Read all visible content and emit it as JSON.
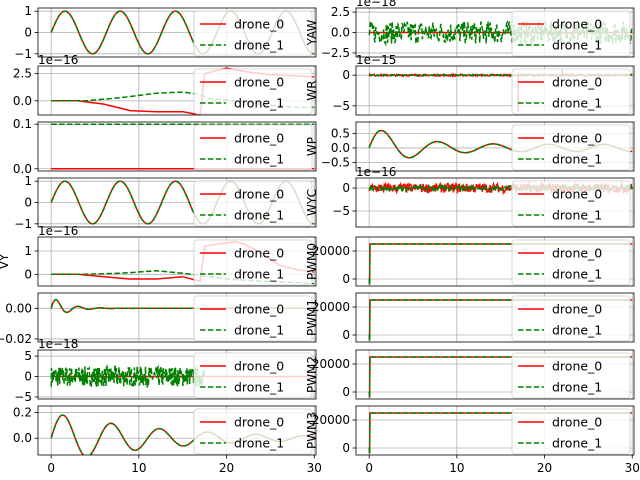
{
  "figure": {
    "legend_labels": [
      "drone_0",
      "drone_1"
    ],
    "colors": {
      "drone_0": "#ff0000",
      "drone_1": "#008000"
    },
    "x_ticks": [
      "0",
      "10",
      "20",
      "30"
    ],
    "legend_placement": "right"
  },
  "chart_data": [
    {
      "type": "line",
      "ylabel": "",
      "offset": "",
      "yticks": [
        {
          "v": 1,
          "t": "1"
        },
        {
          "v": 0,
          "t": "0"
        },
        {
          "v": -1,
          "t": "−1"
        }
      ],
      "x": [
        0,
        30
      ],
      "ylim": [
        -1.15,
        1.15
      ],
      "series": [
        {
          "name": "drone_0",
          "shape": "sine",
          "amp": 1.0,
          "period": 6.3,
          "until": 30
        },
        {
          "name": "drone_1",
          "shape": "sine",
          "amp": 1.0,
          "period": 6.3,
          "until": 30
        }
      ]
    },
    {
      "type": "line",
      "ylabel": "",
      "offset": "1e−16",
      "yticks": [
        {
          "v": 2.5,
          "t": "2.5"
        },
        {
          "v": 0,
          "t": "0.0"
        }
      ],
      "x": [
        0,
        30
      ],
      "ylim": [
        -1.3,
        3.2
      ],
      "series": [
        {
          "name": "drone_0",
          "points": [
            [
              0,
              0
            ],
            [
              3,
              0
            ],
            [
              6,
              -0.3
            ],
            [
              9,
              -0.9
            ],
            [
              12,
              -1.0
            ],
            [
              15,
              -1.0
            ],
            [
              17,
              -1.3
            ],
            [
              17.5,
              2.5
            ],
            [
              20,
              3.0
            ],
            [
              22,
              2.7
            ],
            [
              25,
              2.4
            ],
            [
              28,
              2.3
            ],
            [
              30,
              2.2
            ]
          ]
        },
        {
          "name": "drone_1",
          "points": [
            [
              0,
              0
            ],
            [
              4,
              0
            ],
            [
              8,
              0.3
            ],
            [
              12,
              0.7
            ],
            [
              15,
              0.8
            ],
            [
              17,
              0.6
            ],
            [
              18,
              0.2
            ],
            [
              21,
              0
            ],
            [
              25,
              -0.4
            ],
            [
              28,
              -0.6
            ],
            [
              30,
              -0.6
            ]
          ]
        }
      ]
    },
    {
      "type": "line",
      "ylabel": "",
      "offset": "",
      "yticks": [
        {
          "v": 0.1,
          "t": "0.1"
        },
        {
          "v": 0,
          "t": "0.0"
        }
      ],
      "x": [
        0,
        30
      ],
      "ylim": [
        -0.005,
        0.105
      ],
      "series": [
        {
          "name": "drone_0",
          "points": [
            [
              0,
              0
            ],
            [
              30,
              0
            ]
          ]
        },
        {
          "name": "drone_1",
          "points": [
            [
              0,
              0.1
            ],
            [
              30,
              0.1
            ]
          ]
        }
      ]
    },
    {
      "type": "line",
      "ylabel": "",
      "offset": "",
      "yticks": [
        {
          "v": 1,
          "t": "1"
        },
        {
          "v": 0,
          "t": "0"
        },
        {
          "v": -1,
          "t": "−1"
        }
      ],
      "x": [
        0,
        30
      ],
      "ylim": [
        -1.15,
        1.15
      ],
      "series": [
        {
          "name": "drone_0",
          "shape": "sine",
          "amp": 1.0,
          "period": 6.3,
          "until": 30
        },
        {
          "name": "drone_1",
          "shape": "sine",
          "amp": 1.0,
          "period": 6.3,
          "until": 30
        }
      ]
    },
    {
      "type": "line",
      "ylabel": "VY",
      "offset": "1e−16",
      "yticks": [
        {
          "v": 1,
          "t": "1"
        },
        {
          "v": 0,
          "t": "0"
        }
      ],
      "x": [
        0,
        30
      ],
      "ylim": [
        -0.5,
        1.6
      ],
      "series": [
        {
          "name": "drone_0",
          "points": [
            [
              0,
              0
            ],
            [
              3,
              0
            ],
            [
              6,
              -0.1
            ],
            [
              9,
              -0.2
            ],
            [
              12,
              -0.2
            ],
            [
              15,
              -0.1
            ],
            [
              17,
              -0.3
            ],
            [
              17.5,
              1.2
            ],
            [
              19,
              1.3
            ],
            [
              21,
              1.4
            ],
            [
              22,
              1.3
            ],
            [
              24,
              0.9
            ],
            [
              26,
              0.4
            ],
            [
              28,
              0.2
            ],
            [
              30,
              0.1
            ]
          ]
        },
        {
          "name": "drone_1",
          "points": [
            [
              0,
              0
            ],
            [
              4,
              0
            ],
            [
              8,
              0.05
            ],
            [
              12,
              0.15
            ],
            [
              15,
              0.05
            ],
            [
              17,
              -0.05
            ],
            [
              20,
              -0.2
            ],
            [
              24,
              -0.3
            ],
            [
              28,
              -0.35
            ],
            [
              30,
              -0.4
            ]
          ]
        }
      ]
    },
    {
      "type": "line",
      "ylabel": "",
      "offset": "",
      "yticks": [
        {
          "v": 0,
          "t": "0.00"
        },
        {
          "v": -0.02,
          "t": "−0.02"
        }
      ],
      "x": [
        0,
        30
      ],
      "ylim": [
        -0.022,
        0.01
      ],
      "series": [
        {
          "name": "drone_0",
          "shape": "damped",
          "amp": 0.008,
          "period": 2.5,
          "decay": 0.6,
          "until": 30
        },
        {
          "name": "drone_1",
          "shape": "damped",
          "amp": 0.008,
          "period": 2.5,
          "decay": 0.6,
          "until": 30
        }
      ]
    },
    {
      "type": "line",
      "ylabel": "",
      "offset": "1e−18",
      "yticks": [
        {
          "v": 5,
          "t": "5"
        },
        {
          "v": 0,
          "t": "0"
        },
        {
          "v": -5,
          "t": "−5"
        }
      ],
      "x": [
        0,
        30
      ],
      "ylim": [
        -5.5,
        6.5
      ],
      "series": [
        {
          "name": "drone_0",
          "points": [
            [
              0,
              0
            ],
            [
              30,
              0
            ]
          ]
        },
        {
          "name": "drone_1",
          "shape": "noise",
          "amp": 2.5,
          "until": 17.5
        }
      ]
    },
    {
      "type": "line",
      "ylabel": "",
      "offset": "",
      "yticks": [
        {
          "v": 0.2,
          "t": "0.2"
        },
        {
          "v": 0,
          "t": "0.0"
        }
      ],
      "x": [
        0,
        30
      ],
      "ylim": [
        -0.13,
        0.25
      ],
      "series": [
        {
          "name": "drone_0",
          "shape": "damped",
          "amp": 0.2,
          "period": 5.5,
          "decay": 0.08,
          "until": 30
        },
        {
          "name": "drone_1",
          "shape": "damped",
          "amp": 0.2,
          "period": 5.5,
          "decay": 0.08,
          "until": 30
        }
      ]
    },
    {
      "type": "line",
      "ylabel": "YAW",
      "offset": "1e−18",
      "yticks": [
        {
          "v": 2.5,
          "t": "2.5"
        },
        {
          "v": 0,
          "t": "0.0"
        },
        {
          "v": -2.5,
          "t": "−2.5"
        }
      ],
      "x": [
        0,
        30
      ],
      "ylim": [
        -3.0,
        3.0
      ],
      "series": [
        {
          "name": "drone_0",
          "points": [
            [
              0,
              0
            ],
            [
              30,
              0
            ]
          ]
        },
        {
          "name": "drone_1",
          "shape": "noise",
          "amp": 1.4,
          "until": 30
        }
      ]
    },
    {
      "type": "line",
      "ylabel": "WR",
      "offset": "1e−15",
      "yticks": [
        {
          "v": 0,
          "t": "0"
        },
        {
          "v": -5,
          "t": "−5"
        }
      ],
      "x": [
        0,
        30
      ],
      "ylim": [
        -6.5,
        1.5
      ],
      "series": [
        {
          "name": "drone_0",
          "shape": "spiky",
          "amp": 0.15,
          "until": 30,
          "spikes": [
            [
              17,
              -6
            ],
            [
              22,
              1
            ]
          ]
        },
        {
          "name": "drone_1",
          "shape": "noise",
          "amp": 0.08,
          "until": 30
        }
      ]
    },
    {
      "type": "line",
      "ylabel": "WP",
      "offset": "",
      "yticks": [
        {
          "v": 0.5,
          "t": "0.5"
        },
        {
          "v": 0,
          "t": "0.0"
        },
        {
          "v": -0.5,
          "t": "−0.5"
        }
      ],
      "x": [
        0,
        30
      ],
      "ylim": [
        -0.8,
        0.9
      ],
      "series": [
        {
          "name": "drone_0",
          "shape": "damped",
          "amp": 0.7,
          "period": 6.3,
          "decay": 0.25,
          "floor": 0.12,
          "until": 30
        },
        {
          "name": "drone_1",
          "shape": "damped",
          "amp": 0.7,
          "period": 6.3,
          "decay": 0.25,
          "floor": 0.12,
          "until": 30
        }
      ]
    },
    {
      "type": "line",
      "ylabel": "WYC",
      "offset": "1e−16",
      "yticks": [
        {
          "v": 0,
          "t": "0"
        },
        {
          "v": -5,
          "t": "−5"
        }
      ],
      "x": [
        0,
        30
      ],
      "ylim": [
        -8.5,
        2.2
      ],
      "series": [
        {
          "name": "drone_0",
          "shape": "noise",
          "amp": 1.0,
          "until": 30
        },
        {
          "name": "drone_1",
          "shape": "noise",
          "amp": 0.5,
          "until": 30
        }
      ]
    },
    {
      "type": "line",
      "ylabel": "PWM0",
      "offset": "",
      "yticks": [
        {
          "v": 20000,
          "t": "20000"
        },
        {
          "v": 0,
          "t": "0"
        }
      ],
      "x": [
        0,
        30
      ],
      "ylim": [
        -5000,
        30000
      ],
      "series": [
        {
          "name": "drone_0",
          "points": [
            [
              0,
              0
            ],
            [
              0.05,
              -4000
            ],
            [
              0.1,
              25000
            ],
            [
              30,
              25000
            ]
          ]
        },
        {
          "name": "drone_1",
          "points": [
            [
              0,
              0
            ],
            [
              0.05,
              -4000
            ],
            [
              0.1,
              25000
            ],
            [
              30,
              25000
            ]
          ]
        }
      ]
    },
    {
      "type": "line",
      "ylabel": "PWM1",
      "offset": "",
      "yticks": [
        {
          "v": 20000,
          "t": "20000"
        },
        {
          "v": 0,
          "t": "0"
        }
      ],
      "x": [
        0,
        30
      ],
      "ylim": [
        -5000,
        30000
      ],
      "series": [
        {
          "name": "drone_0",
          "points": [
            [
              0,
              0
            ],
            [
              0.05,
              -4000
            ],
            [
              0.1,
              25000
            ],
            [
              30,
              25000
            ]
          ]
        },
        {
          "name": "drone_1",
          "points": [
            [
              0,
              0
            ],
            [
              0.05,
              -4000
            ],
            [
              0.1,
              25000
            ],
            [
              30,
              25000
            ]
          ]
        }
      ]
    },
    {
      "type": "line",
      "ylabel": "PWM2",
      "offset": "",
      "yticks": [
        {
          "v": 20000,
          "t": "20000"
        },
        {
          "v": 0,
          "t": "0"
        }
      ],
      "x": [
        0,
        30
      ],
      "ylim": [
        -5000,
        30000
      ],
      "series": [
        {
          "name": "drone_0",
          "points": [
            [
              0,
              0
            ],
            [
              0.05,
              -4000
            ],
            [
              0.1,
              25000
            ],
            [
              30,
              25000
            ]
          ]
        },
        {
          "name": "drone_1",
          "points": [
            [
              0,
              0
            ],
            [
              0.05,
              -4000
            ],
            [
              0.1,
              25000
            ],
            [
              30,
              25000
            ]
          ]
        }
      ]
    },
    {
      "type": "line",
      "ylabel": "PWM3",
      "offset": "",
      "yticks": [
        {
          "v": 20000,
          "t": "20000"
        },
        {
          "v": 0,
          "t": "0"
        }
      ],
      "x": [
        0,
        30
      ],
      "ylim": [
        -5000,
        30000
      ],
      "series": [
        {
          "name": "drone_0",
          "points": [
            [
              0,
              0
            ],
            [
              0.05,
              -4000
            ],
            [
              0.1,
              25000
            ],
            [
              30,
              25000
            ]
          ]
        },
        {
          "name": "drone_1",
          "points": [
            [
              0,
              0
            ],
            [
              0.05,
              -4000
            ],
            [
              0.1,
              25000
            ],
            [
              30,
              25000
            ]
          ]
        }
      ]
    }
  ]
}
